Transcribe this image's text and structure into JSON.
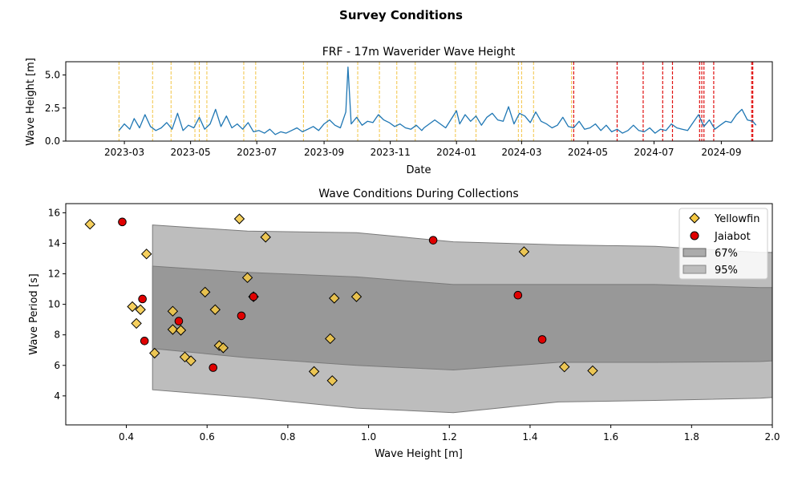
{
  "figure": {
    "suptitle": "Survey Conditions"
  },
  "chart_data": [
    {
      "type": "line",
      "title": "FRF - 17m Waverider Wave Height",
      "xlabel": "Date",
      "ylabel": "Wave Height [m]",
      "xlim": [
        "2023-01-06",
        "2024-10-18"
      ],
      "ylim": [
        0,
        6
      ],
      "x_ticks": [
        "2023-03",
        "2023-05",
        "2023-07",
        "2023-09",
        "2023-11",
        "2024-01",
        "2024-03",
        "2024-05",
        "2024-07",
        "2024-09"
      ],
      "y_ticks": [
        "0.0",
        "2.5",
        "5.0"
      ],
      "y_tick_values": [
        0,
        2.5,
        5.0
      ],
      "series_color": "#1f77b4",
      "series": [
        {
          "x": [
            "2023-02-24",
            "2023-03-01",
            "2023-03-06",
            "2023-03-10",
            "2023-03-15",
            "2023-03-20",
            "2023-03-25",
            "2023-03-30",
            "2023-04-04",
            "2023-04-09",
            "2023-04-14",
            "2023-04-19",
            "2023-04-24",
            "2023-04-29",
            "2023-05-04",
            "2023-05-09",
            "2023-05-14",
            "2023-05-19",
            "2023-05-24",
            "2023-05-29",
            "2023-06-03",
            "2023-06-08",
            "2023-06-13",
            "2023-06-18",
            "2023-06-23",
            "2023-06-28",
            "2023-07-03",
            "2023-07-08",
            "2023-07-13",
            "2023-07-18",
            "2023-07-23",
            "2023-07-28",
            "2023-08-02",
            "2023-08-07",
            "2023-08-12",
            "2023-08-17",
            "2023-08-22",
            "2023-08-27",
            "2023-09-01",
            "2023-09-06",
            "2023-09-11",
            "2023-09-16",
            "2023-09-21",
            "2023-09-23",
            "2023-09-26",
            "2023-10-01",
            "2023-10-06",
            "2023-10-11",
            "2023-10-16",
            "2023-10-21",
            "2023-10-26",
            "2023-10-31",
            "2023-11-05",
            "2023-11-10",
            "2023-11-15",
            "2023-11-20",
            "2023-11-25",
            "2023-11-30",
            "2023-12-02",
            "2023-12-12",
            "2023-12-22",
            "2024-01-01",
            "2024-01-04",
            "2024-01-09",
            "2024-01-14",
            "2024-01-19",
            "2024-01-24",
            "2024-01-29",
            "2024-02-03",
            "2024-02-08",
            "2024-02-13",
            "2024-02-18",
            "2024-02-23",
            "2024-02-28",
            "2024-03-04",
            "2024-03-09",
            "2024-03-14",
            "2024-03-19",
            "2024-03-24",
            "2024-03-29",
            "2024-04-03",
            "2024-04-08",
            "2024-04-13",
            "2024-04-18",
            "2024-04-23",
            "2024-04-28",
            "2024-05-03",
            "2024-05-08",
            "2024-05-13",
            "2024-05-18",
            "2024-05-23",
            "2024-05-28",
            "2024-06-02",
            "2024-06-07",
            "2024-06-12",
            "2024-06-17",
            "2024-06-22",
            "2024-06-27",
            "2024-07-02",
            "2024-07-07",
            "2024-07-12",
            "2024-07-17",
            "2024-07-22",
            "2024-07-27",
            "2024-08-01",
            "2024-08-06",
            "2024-08-11",
            "2024-08-16",
            "2024-08-21",
            "2024-08-26",
            "2024-08-31",
            "2024-09-05",
            "2024-09-10",
            "2024-09-15",
            "2024-09-20",
            "2024-09-25",
            "2024-09-30",
            "2024-10-03"
          ],
          "y": [
            0.8,
            1.3,
            0.9,
            1.7,
            1.0,
            2.0,
            1.1,
            0.8,
            1.0,
            1.4,
            0.9,
            2.1,
            0.8,
            1.2,
            1.0,
            1.8,
            0.9,
            1.3,
            2.4,
            1.1,
            1.9,
            1.0,
            1.3,
            0.9,
            1.4,
            0.7,
            0.8,
            0.6,
            0.9,
            0.5,
            0.7,
            0.6,
            0.8,
            1.0,
            0.7,
            0.9,
            1.1,
            0.8,
            1.3,
            1.6,
            1.2,
            1.0,
            2.2,
            5.6,
            1.3,
            1.8,
            1.2,
            1.5,
            1.4,
            2.0,
            1.6,
            1.4,
            1.1,
            1.3,
            1.0,
            0.9,
            1.2,
            0.8,
            1.0,
            1.6,
            1.0,
            2.3,
            1.3,
            2.0,
            1.5,
            1.9,
            1.2,
            1.8,
            2.1,
            1.6,
            1.5,
            2.6,
            1.3,
            2.1,
            1.9,
            1.4,
            2.2,
            1.5,
            1.3,
            1.0,
            1.2,
            1.8,
            1.1,
            1.0,
            1.5,
            0.9,
            1.0,
            1.3,
            0.8,
            1.2,
            0.7,
            0.9,
            0.6,
            0.8,
            1.2,
            0.8,
            0.7,
            1.0,
            0.6,
            0.9,
            0.8,
            1.3,
            1.0,
            0.9,
            0.8,
            1.4,
            2.0,
            1.1,
            1.6,
            0.9,
            1.2,
            1.5,
            1.4,
            2.0,
            2.4,
            1.6,
            1.5,
            1.2
          ]
        }
      ],
      "collection_lines": {
        "yellow_color": "#f2c445",
        "red_color": "#e01010",
        "yellow_dates": [
          "2023-02-24",
          "2023-03-27",
          "2023-04-13",
          "2023-05-05",
          "2023-05-09",
          "2023-05-16",
          "2023-06-19",
          "2023-06-30",
          "2023-08-13",
          "2023-09-04",
          "2023-10-02",
          "2023-10-22",
          "2023-11-07",
          "2023-11-24",
          "2023-12-31",
          "2024-01-19",
          "2024-02-27",
          "2024-03-01",
          "2024-03-12",
          "2024-04-16"
        ],
        "red_dates": [
          "2024-04-18",
          "2024-05-28",
          "2024-06-21",
          "2024-07-09",
          "2024-07-18",
          "2024-08-12",
          "2024-08-14",
          "2024-08-16",
          "2024-08-25",
          "2024-09-29",
          "2024-09-30"
        ]
      }
    },
    {
      "type": "scatter",
      "title": "Wave Conditions During Collections",
      "xlabel": "Wave Height [m]",
      "ylabel": "Wave Period [s]",
      "xlim": [
        0.25,
        2.0
      ],
      "ylim": [
        2.1,
        16.6
      ],
      "x_ticks": [
        "0.4",
        "0.6",
        "0.8",
        "1.0",
        "1.2",
        "1.4",
        "1.6",
        "1.8",
        "2.0"
      ],
      "x_tick_values": [
        0.4,
        0.6,
        0.8,
        1.0,
        1.2,
        1.4,
        1.6,
        1.8,
        2.0
      ],
      "y_ticks": [
        "4",
        "6",
        "8",
        "10",
        "12",
        "14",
        "16"
      ],
      "y_tick_values": [
        4,
        6,
        8,
        10,
        12,
        14,
        16
      ],
      "legend": {
        "position": "upper right",
        "yellowfin": "Yellowfin",
        "jaiabot": "Jaiabot",
        "band67": "67%",
        "band95": "95%"
      },
      "bands": [
        {
          "name": "95%",
          "color": "#bdbdbd",
          "x": [
            0.465,
            0.7,
            0.97,
            1.21,
            1.47,
            1.71,
            1.97,
            2.0
          ],
          "upper": [
            15.2,
            14.8,
            14.7,
            14.1,
            13.9,
            13.8,
            13.4,
            13.4
          ],
          "lower": [
            4.4,
            3.9,
            3.2,
            2.9,
            3.6,
            3.7,
            3.85,
            3.9
          ]
        },
        {
          "name": "67%",
          "color": "#8c8c8c",
          "x": [
            0.465,
            0.7,
            0.97,
            1.21,
            1.47,
            1.71,
            1.97,
            2.0
          ],
          "upper": [
            12.5,
            12.1,
            11.8,
            11.3,
            11.3,
            11.3,
            11.1,
            11.1
          ],
          "lower": [
            7.1,
            6.5,
            6.0,
            5.7,
            6.2,
            6.2,
            6.25,
            6.3
          ]
        }
      ],
      "series": [
        {
          "name": "Yellowfin",
          "marker": "diamond",
          "color": "#f5c842",
          "points": [
            [
              0.31,
              15.25
            ],
            [
              0.68,
              15.6
            ],
            [
              0.745,
              14.4
            ],
            [
              0.45,
              13.3
            ],
            [
              1.385,
              13.45
            ],
            [
              0.7,
              11.75
            ],
            [
              0.595,
              10.8
            ],
            [
              0.715,
              10.5
            ],
            [
              0.97,
              10.5
            ],
            [
              0.915,
              10.4
            ],
            [
              0.415,
              9.85
            ],
            [
              0.435,
              9.65
            ],
            [
              0.515,
              9.55
            ],
            [
              0.62,
              9.65
            ],
            [
              0.425,
              8.75
            ],
            [
              0.515,
              8.35
            ],
            [
              0.535,
              8.3
            ],
            [
              0.905,
              7.75
            ],
            [
              0.63,
              7.3
            ],
            [
              0.64,
              7.15
            ],
            [
              0.47,
              6.8
            ],
            [
              0.545,
              6.55
            ],
            [
              0.56,
              6.3
            ],
            [
              0.865,
              5.6
            ],
            [
              0.91,
              5.0
            ],
            [
              1.485,
              5.9
            ],
            [
              1.555,
              5.65
            ]
          ]
        },
        {
          "name": "Jaiabot",
          "marker": "circle",
          "color": "#e00000",
          "points": [
            [
              0.39,
              15.4
            ],
            [
              1.16,
              14.2
            ],
            [
              0.44,
              10.35
            ],
            [
              0.715,
              10.5
            ],
            [
              1.37,
              10.6
            ],
            [
              0.685,
              9.25
            ],
            [
              0.53,
              8.9
            ],
            [
              0.445,
              7.6
            ],
            [
              1.43,
              7.7
            ],
            [
              0.615,
              5.85
            ]
          ]
        }
      ]
    }
  ]
}
